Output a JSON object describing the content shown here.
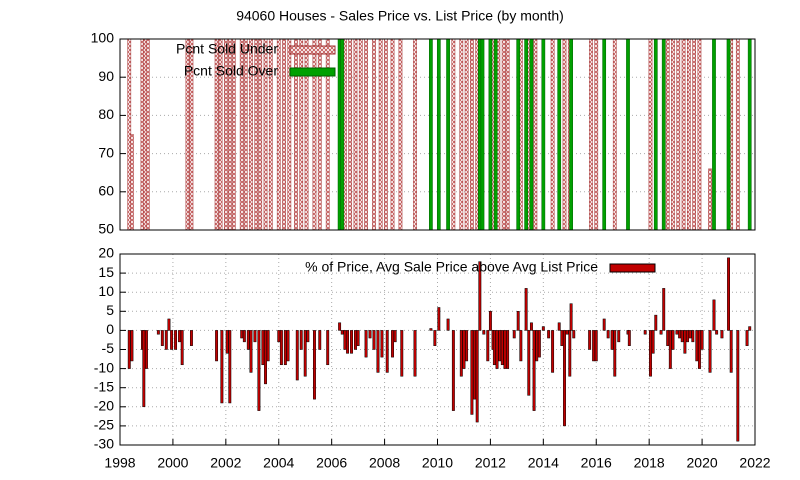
{
  "chart_data": [
    {
      "type": "bar",
      "title": "94060 Houses - Sales Price vs. List Price (by month)",
      "xlim": [
        1998,
        2022
      ],
      "ylim": [
        50,
        100
      ],
      "yticks": [
        50,
        60,
        70,
        80,
        90,
        100
      ],
      "grid": true,
      "series": [
        {
          "name": "Pcnt Sold Under",
          "color": "#f4b6b6",
          "x": [
            1998.35,
            1998.45,
            1998.85,
            1998.95,
            1999.05,
            2000.55,
            2000.7,
            2001.65,
            2001.8,
            2002.0,
            2002.15,
            2002.3,
            2002.6,
            2002.75,
            2002.95,
            2003.15,
            2003.3,
            2003.5,
            2003.7,
            2004.0,
            2004.2,
            2004.4,
            2004.65,
            2004.85,
            2005.05,
            2005.35,
            2005.55,
            2005.85,
            2006.5,
            2006.7,
            2006.9,
            2007.1,
            2007.3,
            2007.6,
            2007.85,
            2008.05,
            2008.3,
            2008.6,
            2009.15,
            2010.6,
            2010.9,
            2011.1,
            2011.3,
            2011.5,
            2012.1,
            2012.3,
            2012.5,
            2012.65,
            2013.15,
            2013.45,
            2013.7,
            2014.35,
            2014.8,
            2015.0,
            2015.8,
            2016.0,
            2016.7,
            2018.05,
            2018.7,
            2018.9,
            2019.1,
            2019.3,
            2019.5,
            2019.7,
            2019.9,
            2020.3,
            2021.1,
            2021.35
          ],
          "values": [
            100,
            75,
            100,
            100,
            100,
            100,
            100,
            100,
            100,
            100,
            100,
            100,
            100,
            100,
            100,
            100,
            100,
            100,
            100,
            100,
            100,
            100,
            100,
            100,
            100,
            100,
            100,
            100,
            100,
            100,
            100,
            100,
            100,
            100,
            100,
            100,
            100,
            100,
            100,
            100,
            100,
            100,
            100,
            100,
            100,
            100,
            100,
            100,
            100,
            100,
            100,
            100,
            100,
            100,
            100,
            100,
            100,
            100,
            100,
            100,
            100,
            100,
            100,
            100,
            100,
            66,
            100,
            100
          ]
        },
        {
          "name": "Pcnt Sold Over",
          "color": "#00a000",
          "x": [
            2006.3,
            2006.4,
            2009.75,
            2010.05,
            2010.4,
            2011.6,
            2011.7,
            2012.0,
            2012.2,
            2013.05,
            2013.35,
            2013.55,
            2014.0,
            2014.6,
            2015.05,
            2016.3,
            2017.2,
            2018.25,
            2018.55,
            2020.45,
            2021.0,
            2021.8
          ],
          "values": [
            100,
            100,
            100,
            100,
            100,
            100,
            100,
            100,
            100,
            100,
            100,
            100,
            100,
            100,
            100,
            100,
            100,
            100,
            100,
            100,
            100,
            100
          ]
        }
      ]
    },
    {
      "type": "bar",
      "xlim": [
        1998,
        2022
      ],
      "xticks": [
        1998,
        2000,
        2002,
        2004,
        2006,
        2008,
        2010,
        2012,
        2014,
        2016,
        2018,
        2020,
        2022
      ],
      "ylim": [
        -30,
        20
      ],
      "yticks": [
        -30,
        -25,
        -20,
        -15,
        -10,
        -5,
        0,
        5,
        10,
        15,
        20
      ],
      "grid": true,
      "series": [
        {
          "name": "% of Price, Avg Sale Price above Avg List Price",
          "color": "#c00000",
          "x": [
            1998.35,
            1998.45,
            1998.85,
            1998.9,
            1999.0,
            1999.45,
            1999.6,
            1999.75,
            1999.85,
            1999.95,
            2000.1,
            2000.25,
            2000.35,
            2000.7,
            2001.65,
            2001.85,
            2002.05,
            2002.15,
            2002.6,
            2002.7,
            2002.85,
            2002.95,
            2003.1,
            2003.25,
            2003.4,
            2003.5,
            2003.6,
            2004.0,
            2004.1,
            2004.25,
            2004.35,
            2004.7,
            2004.85,
            2005.0,
            2005.1,
            2005.35,
            2005.55,
            2005.85,
            2006.3,
            2006.4,
            2006.5,
            2006.6,
            2006.75,
            2006.9,
            2007.0,
            2007.3,
            2007.45,
            2007.6,
            2007.75,
            2007.9,
            2008.1,
            2008.3,
            2008.4,
            2008.65,
            2009.15,
            2009.75,
            2009.9,
            2010.05,
            2010.4,
            2010.6,
            2010.9,
            2011.0,
            2011.1,
            2011.3,
            2011.4,
            2011.5,
            2011.6,
            2011.75,
            2011.9,
            2012.0,
            2012.1,
            2012.15,
            2012.25,
            2012.35,
            2012.45,
            2012.55,
            2012.65,
            2012.9,
            2013.05,
            2013.15,
            2013.35,
            2013.45,
            2013.55,
            2013.65,
            2013.75,
            2013.85,
            2014.0,
            2014.2,
            2014.35,
            2014.6,
            2014.7,
            2014.8,
            2014.9,
            2015.0,
            2015.05,
            2015.15,
            2015.75,
            2015.9,
            2016.0,
            2016.3,
            2016.45,
            2016.6,
            2016.7,
            2016.85,
            2017.2,
            2017.25,
            2017.85,
            2018.05,
            2018.15,
            2018.25,
            2018.45,
            2018.55,
            2018.7,
            2018.8,
            2018.9,
            2019.05,
            2019.15,
            2019.25,
            2019.35,
            2019.45,
            2019.55,
            2019.65,
            2019.8,
            2019.9,
            2020.0,
            2020.3,
            2020.45,
            2020.55,
            2020.75,
            2021.0,
            2021.1,
            2021.35,
            2021.7,
            2021.8
          ],
          "values": [
            -10,
            -8,
            -5,
            -20,
            -10,
            -1,
            -4,
            -5,
            3,
            -5,
            -5,
            -3,
            -9,
            -4,
            -8,
            -19,
            -6,
            -19,
            -2,
            -3,
            -5,
            -11,
            -3,
            -21,
            -9,
            -14,
            -8,
            -3,
            -9,
            -9,
            -8,
            -13,
            -5,
            -12,
            -3,
            -18,
            -5,
            -9,
            2,
            -1,
            -5,
            -6,
            -6,
            -5,
            -4,
            -7,
            -2,
            -5,
            -11,
            -7,
            -11,
            -7,
            -3,
            -12,
            -12,
            0.5,
            -4,
            6,
            3,
            -21,
            -12,
            -10,
            -8,
            -22,
            -18,
            -24,
            18,
            -1,
            -8,
            5,
            -5,
            -9,
            -10,
            -8,
            -9,
            -10,
            -10,
            -2,
            5,
            -8,
            11,
            -17,
            2,
            -21,
            -8,
            -7,
            1,
            -2,
            -11,
            2,
            -4,
            -25,
            -1,
            -12,
            7,
            -2,
            -5,
            -8,
            -8,
            3,
            -2,
            -5,
            -12,
            -3,
            -1,
            -4,
            -1,
            -12,
            -6,
            4,
            -1,
            11,
            -4,
            -10,
            -5,
            -1,
            -2,
            -3,
            -6,
            -3,
            -2,
            -3,
            -8,
            -10,
            -5,
            -11,
            8,
            -1,
            -2,
            19,
            -11,
            -29,
            -4,
            1
          ]
        }
      ]
    }
  ]
}
